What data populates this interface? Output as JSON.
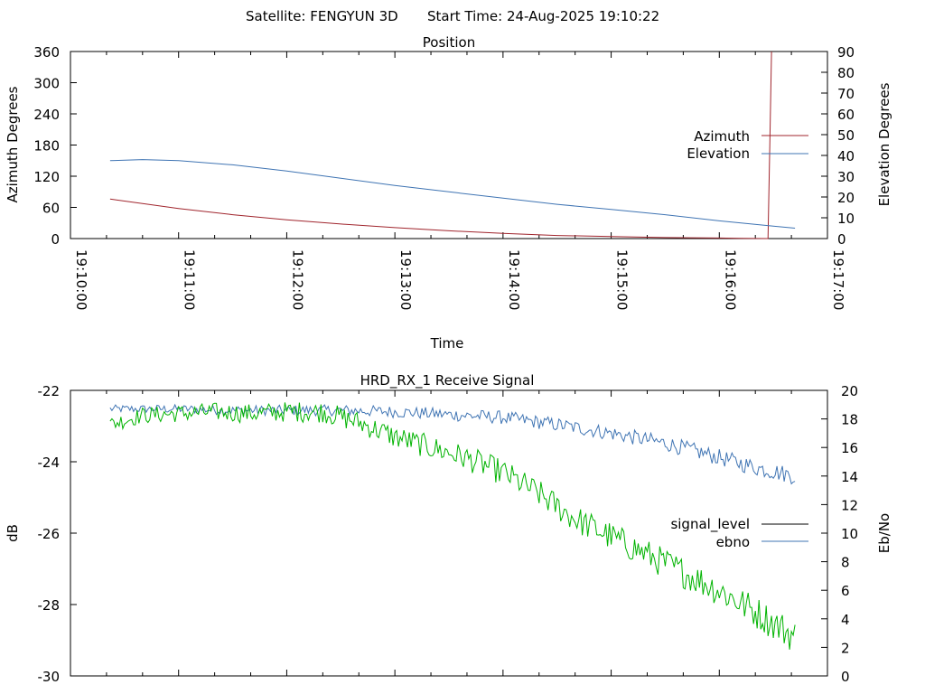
{
  "header": {
    "satellite_label": "Satellite: FENGYUN 3D",
    "start_time_label": "Start Time: 24-Aug-2025 19:10:22"
  },
  "colors": {
    "azimuth": "#a0252d",
    "elevation": "#3f74b3",
    "signal_level": "#000000",
    "ebno": "#3f74b3",
    "receive_trace": "#00b300"
  },
  "chart_data": [
    {
      "type": "line",
      "title": "Position",
      "xlabel": "Time",
      "ylabel": "Azimuth Degrees",
      "y2label": "Elevation Degrees",
      "xlim": [
        "19:10:00",
        "19:17:00"
      ],
      "ylim": [
        0,
        360
      ],
      "y2lim": [
        0,
        90
      ],
      "x_ticks": [
        "19:10:00",
        "19:11:00",
        "19:12:00",
        "19:13:00",
        "19:14:00",
        "19:15:00",
        "19:16:00",
        "19:17:00"
      ],
      "y_ticks": [
        0,
        60,
        120,
        180,
        240,
        300,
        360
      ],
      "y2_ticks": [
        0,
        10,
        20,
        30,
        40,
        50,
        60,
        70,
        80,
        90
      ],
      "legend_position": "right",
      "series": [
        {
          "name": "Azimuth",
          "axis": "y",
          "color": "#a0252d",
          "points": [
            [
              "19:10:22",
              76
            ],
            [
              "19:11:00",
              58
            ],
            [
              "19:11:30",
              46
            ],
            [
              "19:12:00",
              36
            ],
            [
              "19:12:30",
              28
            ],
            [
              "19:13:00",
              21
            ],
            [
              "19:13:30",
              15
            ],
            [
              "19:14:00",
              10
            ],
            [
              "19:14:30",
              6
            ],
            [
              "19:15:00",
              4
            ],
            [
              "19:15:30",
              2
            ],
            [
              "19:16:00",
              1
            ],
            [
              "19:16:12",
              0.5
            ],
            [
              "19:16:27",
              0
            ],
            [
              "19:16:28",
              180
            ],
            [
              "19:16:29",
              360
            ]
          ]
        },
        {
          "name": "Elevation",
          "axis": "y2",
          "color": "#3f74b3",
          "points": [
            [
              "19:10:22",
              37.5
            ],
            [
              "19:10:40",
              38
            ],
            [
              "19:11:00",
              37.5
            ],
            [
              "19:11:30",
              35.5
            ],
            [
              "19:12:00",
              32.5
            ],
            [
              "19:12:30",
              29
            ],
            [
              "19:13:00",
              25.5
            ],
            [
              "19:13:30",
              22.5
            ],
            [
              "19:14:00",
              19.5
            ],
            [
              "19:14:30",
              16.5
            ],
            [
              "19:15:00",
              14
            ],
            [
              "19:15:30",
              11.5
            ],
            [
              "19:16:00",
              8.5
            ],
            [
              "19:16:30",
              6
            ],
            [
              "19:16:42",
              5
            ]
          ]
        }
      ]
    },
    {
      "type": "line",
      "title": "HRD_RX_1 Receive Signal",
      "ylabel": "dB",
      "y2label": "Eb/No",
      "xlim": [
        "19:10:00",
        "19:17:00"
      ],
      "ylim": [
        -30,
        -22
      ],
      "y2lim": [
        0,
        20
      ],
      "y_ticks": [
        -30,
        -28,
        -26,
        -24,
        -22
      ],
      "y2_ticks": [
        0,
        2,
        4,
        6,
        8,
        10,
        12,
        14,
        16,
        18,
        20
      ],
      "legend_position": "right",
      "series": [
        {
          "name": "signal_level",
          "axis": "y",
          "color": "#00b300",
          "points": [
            [
              "19:10:22",
              -22.95
            ],
            [
              "19:10:40",
              -22.7
            ],
            [
              "19:11:00",
              -22.65
            ],
            [
              "19:11:20",
              -22.6
            ],
            [
              "19:11:40",
              -22.65
            ],
            [
              "19:12:00",
              -22.6
            ],
            [
              "19:12:20",
              -22.6
            ],
            [
              "19:12:40",
              -22.9
            ],
            [
              "19:13:00",
              -23.3
            ],
            [
              "19:13:20",
              -23.6
            ],
            [
              "19:13:40",
              -23.9
            ],
            [
              "19:14:00",
              -24.3
            ],
            [
              "19:14:20",
              -24.9
            ],
            [
              "19:14:40",
              -25.6
            ],
            [
              "19:15:00",
              -26.1
            ],
            [
              "19:15:20",
              -26.6
            ],
            [
              "19:15:40",
              -27.1
            ],
            [
              "19:16:00",
              -27.6
            ],
            [
              "19:16:20",
              -28.2
            ],
            [
              "19:16:42",
              -28.9
            ]
          ]
        },
        {
          "name": "ebno",
          "axis": "y2",
          "color": "#3f74b3",
          "points": [
            [
              "19:10:22",
              18.7
            ],
            [
              "19:11:00",
              18.7
            ],
            [
              "19:11:30",
              18.6
            ],
            [
              "19:12:00",
              18.6
            ],
            [
              "19:12:30",
              18.6
            ],
            [
              "19:13:00",
              18.5
            ],
            [
              "19:13:30",
              18.3
            ],
            [
              "19:14:00",
              18.1
            ],
            [
              "19:14:30",
              17.6
            ],
            [
              "19:15:00",
              17.0
            ],
            [
              "19:15:30",
              16.3
            ],
            [
              "19:16:00",
              15.3
            ],
            [
              "19:16:20",
              14.6
            ],
            [
              "19:16:42",
              14.0
            ]
          ]
        }
      ]
    }
  ]
}
